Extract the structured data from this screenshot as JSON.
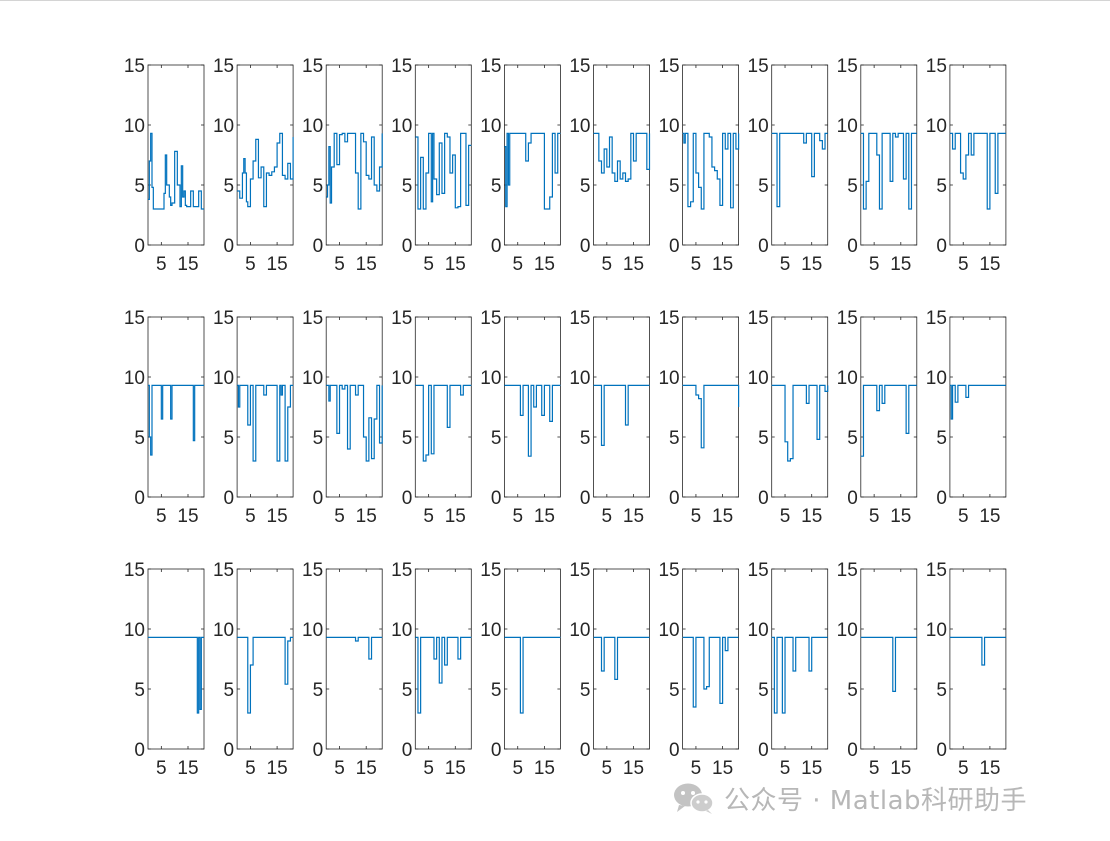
{
  "chart_data": {
    "type": "line",
    "layout": {
      "rows": 3,
      "cols": 10
    },
    "series_color": "#0072BD",
    "axes": {
      "ylim": [
        0,
        15
      ],
      "yticks": [
        0,
        5,
        10,
        15
      ],
      "xlim": [
        0,
        21
      ],
      "xticks": [
        5,
        15
      ],
      "grid": false,
      "step": true
    },
    "panels": [
      {
        "row": 1,
        "col": 1,
        "x": [
          0,
          0.5,
          1,
          1.5,
          2,
          3,
          4,
          5,
          6,
          6.5,
          7,
          8,
          8.5,
          9,
          10,
          11,
          12,
          12.5,
          13,
          13.5,
          14,
          14.5,
          15,
          16,
          17,
          18,
          19,
          20,
          21
        ],
        "y": [
          3.8,
          7,
          9.3,
          4.8,
          3,
          3,
          3,
          3,
          4.3,
          7.5,
          5,
          4,
          3.3,
          3.5,
          7.8,
          5,
          3.2,
          6.6,
          4,
          4.5,
          3.3,
          3.2,
          3.2,
          4.5,
          3.2,
          3.2,
          4.5,
          3,
          3
        ]
      },
      {
        "row": 1,
        "col": 2,
        "x": [
          0,
          1,
          2,
          2.5,
          3,
          3.5,
          4,
          5,
          6,
          7,
          8,
          9,
          10,
          11,
          12,
          13,
          14,
          15,
          16,
          17,
          18,
          19,
          20,
          21
        ],
        "y": [
          4.5,
          3.9,
          6,
          7.2,
          6,
          3.6,
          3.2,
          5.5,
          7,
          8.8,
          5.6,
          6.5,
          3.2,
          6,
          5.8,
          6.1,
          6.5,
          8.5,
          9.3,
          5.8,
          5.5,
          6.8,
          5.5,
          9
        ]
      },
      {
        "row": 1,
        "col": 3,
        "x": [
          0,
          0.5,
          1,
          1.5,
          2,
          3,
          4,
          5,
          6,
          7,
          8,
          9,
          10,
          11,
          12,
          12.5,
          13,
          14,
          15,
          16,
          17,
          18,
          19,
          20,
          21
        ],
        "y": [
          4,
          5,
          8.2,
          3.5,
          6.5,
          9.3,
          6.7,
          9.2,
          9.3,
          8.6,
          9.3,
          9.3,
          9.3,
          6,
          3,
          3,
          9.3,
          8.6,
          5.8,
          5.5,
          9,
          5,
          4.5,
          6.5,
          9.3
        ]
      },
      {
        "row": 1,
        "col": 4,
        "x": [
          0,
          1,
          2,
          3,
          4,
          5,
          6,
          6.5,
          7,
          8,
          9,
          10,
          11,
          12,
          13,
          14,
          15,
          16,
          17,
          18,
          19,
          20,
          21
        ],
        "y": [
          9,
          3,
          7.3,
          3,
          6,
          9.3,
          3.6,
          9.3,
          5.5,
          4.2,
          8.5,
          4.3,
          9.3,
          9,
          6,
          7.5,
          3.1,
          3.2,
          9.3,
          9.3,
          3.3,
          8.3,
          8.3
        ]
      },
      {
        "row": 1,
        "col": 5,
        "x": [
          0,
          0.5,
          1,
          1.5,
          2,
          3,
          4,
          5,
          6,
          7,
          8,
          9,
          10,
          11,
          12,
          13,
          14,
          15,
          16,
          17,
          18,
          19,
          20,
          21
        ],
        "y": [
          8.2,
          3.2,
          9.3,
          5,
          9.3,
          9.3,
          9.3,
          9.3,
          9.3,
          9.3,
          7,
          8.5,
          9.3,
          9.3,
          9.3,
          9.3,
          9.3,
          3,
          3,
          4,
          9.3,
          6,
          9.3,
          9.3
        ]
      },
      {
        "row": 1,
        "col": 6,
        "x": [
          0,
          1,
          2,
          3,
          4,
          5,
          6,
          7,
          8,
          9,
          10,
          11,
          12,
          13,
          14,
          15,
          16,
          17,
          18,
          19,
          20,
          21
        ],
        "y": [
          9.3,
          9.3,
          7,
          6,
          8,
          6.5,
          9,
          6,
          5.3,
          7,
          5.5,
          6,
          5.3,
          5.5,
          9.3,
          7,
          9.3,
          9.3,
          9.3,
          9.3,
          6.3,
          9.3
        ]
      },
      {
        "row": 1,
        "col": 7,
        "x": [
          0,
          0.5,
          1,
          2,
          3,
          4,
          5,
          6,
          7,
          8,
          9,
          10,
          11,
          12,
          13,
          14,
          15,
          16,
          17,
          17.5,
          18,
          19,
          20,
          21
        ],
        "y": [
          9.3,
          8.5,
          9.3,
          3.2,
          3.6,
          9.3,
          6,
          4.8,
          3,
          9.3,
          9.3,
          9,
          6.5,
          6.2,
          5.5,
          3.3,
          9.3,
          8,
          9.3,
          9.3,
          3.1,
          9.3,
          8,
          9.3
        ]
      },
      {
        "row": 1,
        "col": 8,
        "x": [
          0,
          1,
          2,
          3,
          4,
          5,
          6,
          7,
          8,
          9,
          10,
          11,
          12,
          13,
          14,
          15,
          16,
          17,
          18,
          19,
          20,
          21
        ],
        "y": [
          9.3,
          9.3,
          3.2,
          9.3,
          9.3,
          9.3,
          9.3,
          9.3,
          9.3,
          9.3,
          9.3,
          9.3,
          8.5,
          9.3,
          9.3,
          5.7,
          9.3,
          9.3,
          8.7,
          8,
          9.3,
          9.3
        ]
      },
      {
        "row": 1,
        "col": 9,
        "x": [
          0,
          1,
          2,
          3,
          4,
          5,
          6,
          7,
          8,
          9,
          10,
          11,
          12,
          13,
          14,
          15,
          16,
          17,
          18,
          19,
          20,
          21
        ],
        "y": [
          9.3,
          3,
          5.3,
          9.3,
          9.3,
          9.3,
          7.5,
          3,
          9.3,
          9.3,
          9.3,
          5.3,
          9.3,
          9,
          9.3,
          9.3,
          5.5,
          9.3,
          3,
          9.3,
          9.3,
          9.3
        ]
      },
      {
        "row": 1,
        "col": 10,
        "x": [
          0,
          1,
          2,
          3,
          4,
          5,
          6,
          7,
          8,
          9,
          10,
          11,
          12,
          13,
          14,
          15,
          16,
          17,
          18,
          19,
          20,
          21
        ],
        "y": [
          9.3,
          8,
          9.3,
          9.3,
          6,
          5.5,
          7.5,
          9.3,
          7.5,
          9.3,
          9.3,
          9.3,
          9.3,
          9.3,
          3,
          9.3,
          9.3,
          4.3,
          9.3,
          9.3,
          9.3,
          9.3
        ]
      },
      {
        "row": 2,
        "col": 1,
        "x": [
          0,
          0.5,
          1,
          1.5,
          2,
          5,
          5.5,
          8,
          8.5,
          9,
          17,
          17.5,
          18,
          21
        ],
        "y": [
          9.3,
          5,
          3.5,
          9.3,
          9.3,
          6.5,
          9.3,
          9.3,
          6.5,
          9.3,
          4.7,
          9.3,
          9.3,
          9.3
        ]
      },
      {
        "row": 2,
        "col": 2,
        "x": [
          0,
          0.5,
          1,
          3,
          4,
          5,
          6,
          7,
          8,
          9,
          10,
          11,
          12,
          13,
          14,
          15,
          16,
          16.5,
          17,
          18,
          19,
          20,
          21
        ],
        "y": [
          9.3,
          7.5,
          9.3,
          9.3,
          6,
          9.3,
          3,
          9.3,
          9.3,
          9.3,
          8.5,
          9.3,
          9.3,
          9.3,
          9.3,
          3,
          9.3,
          8.5,
          9.3,
          3,
          7.5,
          9.3,
          9.3
        ]
      },
      {
        "row": 2,
        "col": 3,
        "x": [
          0,
          1,
          1.5,
          2,
          3,
          4,
          5,
          6,
          7,
          8,
          9,
          10,
          11,
          12,
          13,
          14,
          15,
          16,
          17,
          18,
          19,
          20,
          21
        ],
        "y": [
          9.3,
          8,
          9.3,
          9.3,
          9.3,
          5.3,
          9.3,
          9,
          9.3,
          4,
          9.3,
          9.3,
          8.5,
          9.3,
          9.3,
          5,
          3,
          6.6,
          3.2,
          6.5,
          9.3,
          4.5,
          9.3
        ]
      },
      {
        "row": 2,
        "col": 4,
        "x": [
          0,
          1,
          2,
          3,
          4,
          5,
          6,
          7,
          8,
          9,
          10,
          11,
          12,
          13,
          14,
          15,
          16,
          17,
          18,
          19,
          20,
          21
        ],
        "y": [
          9.3,
          9.3,
          9.3,
          3,
          3.5,
          9.3,
          3.6,
          9.3,
          9.3,
          9.3,
          9.3,
          9.3,
          5.8,
          9.3,
          9.3,
          9.3,
          9.3,
          8.5,
          9.3,
          9.3,
          9.3,
          9.3
        ]
      },
      {
        "row": 2,
        "col": 5,
        "x": [
          0,
          1,
          2,
          3,
          4,
          5,
          6,
          7,
          8,
          9,
          10,
          11,
          12,
          13,
          14,
          15,
          16,
          17,
          18,
          19,
          20,
          21
        ],
        "y": [
          9.3,
          9.3,
          9.3,
          9.3,
          9.3,
          9.3,
          6.8,
          9.3,
          9.3,
          3.4,
          9.3,
          7.5,
          9.3,
          9.3,
          6.8,
          9.3,
          9.3,
          6.3,
          9.3,
          9.3,
          9.3,
          9.3
        ]
      },
      {
        "row": 2,
        "col": 6,
        "x": [
          0,
          1,
          2,
          3,
          4,
          5,
          6,
          7,
          8,
          9,
          10,
          11,
          12,
          13,
          14,
          15,
          16,
          17,
          18,
          19,
          20,
          21
        ],
        "y": [
          9.3,
          9.3,
          9.3,
          4.3,
          9.3,
          9.3,
          9.3,
          9.3,
          9.3,
          9.3,
          9.3,
          9.3,
          6,
          9.3,
          9.3,
          9.3,
          9.3,
          9.3,
          9.3,
          9.3,
          9.3,
          9.3
        ]
      },
      {
        "row": 2,
        "col": 7,
        "x": [
          0,
          1,
          2,
          3,
          4,
          5,
          6,
          7,
          8,
          9,
          10,
          11,
          12,
          13,
          14,
          15,
          16,
          17,
          18,
          19,
          20,
          21
        ],
        "y": [
          9.3,
          9.3,
          9.3,
          9.3,
          9.3,
          8.5,
          8.2,
          4.1,
          9.3,
          9.3,
          9.3,
          9.3,
          9.3,
          9.3,
          9.3,
          9.3,
          9.3,
          9.3,
          9.3,
          9.3,
          9.3,
          7.5
        ]
      },
      {
        "row": 2,
        "col": 8,
        "x": [
          0,
          1,
          2,
          3,
          4,
          5,
          6,
          7,
          8,
          9,
          10,
          11,
          12,
          13,
          14,
          15,
          16,
          17,
          18,
          19,
          20,
          21
        ],
        "y": [
          9.3,
          9.3,
          9.3,
          9.3,
          9.3,
          4.6,
          3,
          3.2,
          9.3,
          9.3,
          9.3,
          9.3,
          9.3,
          7.8,
          9.3,
          9.3,
          9.3,
          4.8,
          9.3,
          9.3,
          8.8,
          9.3
        ]
      },
      {
        "row": 2,
        "col": 9,
        "x": [
          0,
          1,
          2,
          3,
          4,
          5,
          6,
          7,
          8,
          9,
          10,
          11,
          12,
          13,
          14,
          15,
          16,
          17,
          18,
          19,
          20,
          21
        ],
        "y": [
          3.4,
          9.3,
          9.3,
          9.3,
          9.3,
          9.3,
          7.2,
          9.3,
          7.8,
          9.3,
          9.3,
          9.3,
          9.3,
          9.3,
          9.3,
          9.3,
          9.3,
          5.3,
          9.3,
          9.3,
          9.3,
          9.3
        ]
      },
      {
        "row": 2,
        "col": 10,
        "x": [
          0,
          0.5,
          1,
          1.5,
          2,
          3,
          4,
          5,
          6,
          7,
          8,
          9,
          10,
          11,
          12,
          13,
          14,
          15,
          16,
          17,
          18,
          19,
          20,
          21
        ],
        "y": [
          9.3,
          6.5,
          9.3,
          9.3,
          7.9,
          9.3,
          9.3,
          9.3,
          8.3,
          9.3,
          9.3,
          9.3,
          9.3,
          9.3,
          9.3,
          9.3,
          9.3,
          9.3,
          9.3,
          9.3,
          9.3,
          9.3,
          9.3,
          9.3
        ]
      },
      {
        "row": 3,
        "col": 1,
        "x": [
          0,
          5,
          10,
          15,
          18,
          18.5,
          19,
          19.5,
          20,
          21
        ],
        "y": [
          9.3,
          9.3,
          9.3,
          9.3,
          9.3,
          3,
          9.3,
          3.3,
          9.3,
          9.3
        ]
      },
      {
        "row": 3,
        "col": 2,
        "x": [
          0,
          3,
          4,
          5,
          6,
          7,
          15,
          18,
          19,
          20,
          21
        ],
        "y": [
          9.3,
          9.3,
          3,
          7,
          9.3,
          9.3,
          9.3,
          5.4,
          9,
          9.3,
          9.3
        ]
      },
      {
        "row": 3,
        "col": 3,
        "x": [
          0,
          5,
          10,
          11,
          12,
          16,
          17,
          18,
          21
        ],
        "y": [
          9.3,
          9.3,
          9.3,
          9,
          9.3,
          7.5,
          9.3,
          9.3,
          9.3
        ]
      },
      {
        "row": 3,
        "col": 4,
        "x": [
          0,
          1,
          2,
          3,
          4,
          5,
          6,
          7,
          8,
          9,
          10,
          11,
          12,
          13,
          14,
          15,
          16,
          17,
          18,
          19,
          20,
          21
        ],
        "y": [
          9.3,
          3,
          9.3,
          9.3,
          9.3,
          9.3,
          9.3,
          7.5,
          9.3,
          5.5,
          9.3,
          7,
          9.3,
          9.3,
          9.3,
          9.3,
          7.5,
          9.3,
          9.3,
          9.3,
          9.3,
          9.3
        ]
      },
      {
        "row": 3,
        "col": 5,
        "x": [
          0,
          5,
          6,
          7,
          10,
          15,
          21
        ],
        "y": [
          9.3,
          9.3,
          3,
          9.3,
          9.3,
          9.3,
          9.3
        ]
      },
      {
        "row": 3,
        "col": 6,
        "x": [
          0,
          2,
          3,
          4,
          7,
          8,
          9,
          15,
          21
        ],
        "y": [
          9.3,
          9.3,
          6.5,
          9.3,
          9.3,
          5.8,
          9.3,
          9.3,
          9.3
        ]
      },
      {
        "row": 3,
        "col": 7,
        "x": [
          0,
          1,
          2,
          3,
          4,
          5,
          6,
          7,
          8,
          9,
          10,
          11,
          12,
          13,
          14,
          15,
          16,
          17,
          18,
          19,
          20,
          21
        ],
        "y": [
          9.3,
          9.3,
          9.3,
          9.3,
          3.5,
          9.3,
          9.3,
          9.3,
          5,
          5.2,
          9.3,
          9.3,
          9.3,
          9.3,
          3.8,
          9.3,
          8.2,
          9.3,
          9.3,
          9.3,
          9.3,
          9.3
        ]
      },
      {
        "row": 3,
        "col": 8,
        "x": [
          0,
          1,
          2,
          3,
          4,
          5,
          6,
          7,
          8,
          9,
          10,
          11,
          12,
          13,
          14,
          15,
          16,
          17,
          18,
          19,
          20,
          21
        ],
        "y": [
          9.3,
          3,
          9.3,
          9.3,
          3,
          9.3,
          9.3,
          9.3,
          6.5,
          9.3,
          9.3,
          9.3,
          9.3,
          9.3,
          6.5,
          9.3,
          9.3,
          9.3,
          9.3,
          9.3,
          9.3,
          9.3
        ]
      },
      {
        "row": 3,
        "col": 9,
        "x": [
          0,
          5,
          10,
          11,
          12,
          13,
          21
        ],
        "y": [
          9.3,
          9.3,
          9.3,
          9.3,
          4.8,
          9.3,
          9.3
        ]
      },
      {
        "row": 3,
        "col": 10,
        "x": [
          0,
          5,
          10,
          11,
          12,
          13,
          21
        ],
        "y": [
          9.3,
          9.3,
          9.3,
          9.3,
          7,
          9.3,
          9.3
        ]
      }
    ]
  },
  "watermark": {
    "text": "公众号 · Matlab科研助手",
    "icon": "wechat-icon"
  }
}
